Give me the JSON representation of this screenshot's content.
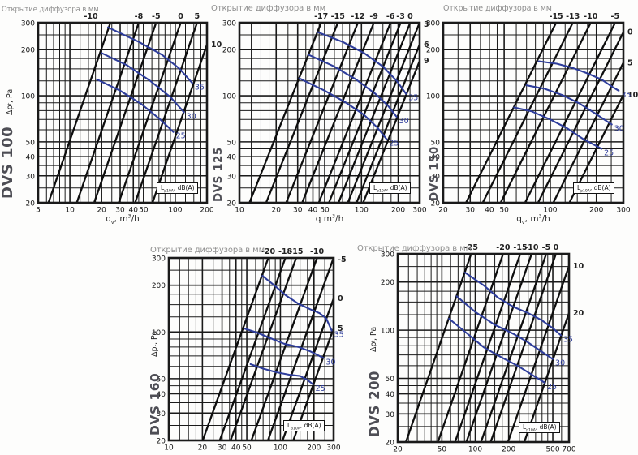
{
  "page": {
    "description": "Five log-log diffuser performance charts: pressure drop vs air flow for DVS diffusers, with diffuser-opening lines (mm) and constant noise-level curves dB(A)"
  },
  "shared": {
    "legend_parts": [
      [
        "L",
        ""
      ],
      [
        "p10A",
        "sub"
      ],
      [
        ", dB(A)",
        ""
      ]
    ],
    "colors": {
      "grid": "#1a1a1a",
      "opening_line": "#0e0e0e",
      "noise_curve": "#2e3d9b",
      "title_gray": "#8e8e8e",
      "model_gray": "#4e4e55",
      "tick_text": "#111111",
      "opening_label": "#222222"
    }
  },
  "chart_data": [
    {
      "type": "line",
      "model": "DVS 100",
      "title": "Открытие диффузора в мм",
      "x_scale": "log",
      "y_scale": "log",
      "x_range": [
        5,
        200
      ],
      "y_range": [
        20,
        300
      ],
      "x_ticks": [
        5,
        10,
        20,
        30,
        40,
        50,
        100,
        200
      ],
      "y_ticks": [
        20,
        30,
        40,
        50,
        100,
        200,
        300
      ],
      "x_label_parts": [
        [
          "q",
          ""
        ],
        [
          "v",
          "sub"
        ],
        [
          ", m",
          ""
        ],
        [
          "3",
          "sup"
        ],
        [
          "/h",
          ""
        ]
      ],
      "y_label_parts": [
        [
          "Δp",
          ""
        ],
        [
          "t",
          "sub"
        ],
        [
          ", Pa",
          ""
        ]
      ],
      "opening_lines_mm": [
        {
          "label": "-10",
          "flow_at_100Pa": 14,
          "label_side": "top",
          "label_dx": -24
        },
        {
          "label": "-8",
          "flow_at_100Pa": 26,
          "label_side": "top"
        },
        {
          "label": "-5",
          "flow_at_100Pa": 38,
          "label_side": "top"
        },
        {
          "label": "0",
          "flow_at_100Pa": 65,
          "label_side": "top"
        },
        {
          "label": "5",
          "flow_at_100Pa": 93,
          "label_side": "top"
        },
        {
          "label": "10",
          "flow_at_100Pa": 136,
          "label_side": "right"
        }
      ],
      "noise_curves_dBA": [
        {
          "label": "35",
          "points_q_dp": [
            [
              23,
              280
            ],
            [
              45,
              225
            ],
            [
              75,
              185
            ],
            [
              110,
              150
            ],
            [
              145,
              121
            ]
          ]
        },
        {
          "label": "30",
          "points_q_dp": [
            [
              20,
              190
            ],
            [
              35,
              158
            ],
            [
              58,
              125
            ],
            [
              90,
              98
            ],
            [
              121,
              78
            ]
          ]
        },
        {
          "label": "25",
          "points_q_dp": [
            [
              18,
              128
            ],
            [
              30,
              108
            ],
            [
              48,
              88
            ],
            [
              72,
              70
            ],
            [
              96,
              58
            ]
          ]
        }
      ]
    },
    {
      "type": "line",
      "model": "DVS 125",
      "title": "Открытие диффузора в мм",
      "x_scale": "log",
      "y_scale": "log",
      "x_range": [
        10,
        300
      ],
      "y_range": [
        20,
        300
      ],
      "x_ticks": [
        10,
        20,
        30,
        40,
        50,
        100,
        200,
        300
      ],
      "y_ticks": [
        20,
        30,
        40,
        50,
        100,
        200,
        300
      ],
      "x_label_parts": [
        [
          "q",
          ""
        ],
        [
          "  m",
          ""
        ],
        [
          "3",
          "sup"
        ],
        [
          "/h",
          ""
        ]
      ],
      "y_label_parts": [],
      "opening_lines_mm": [
        {
          "label": "-17",
          "flow_at_100Pa": 27,
          "label_side": "top"
        },
        {
          "label": "-15",
          "flow_at_100Pa": 37,
          "label_side": "top"
        },
        {
          "label": "-12",
          "flow_at_100Pa": 54,
          "label_side": "top"
        },
        {
          "label": "-9",
          "flow_at_100Pa": 73,
          "label_side": "top"
        },
        {
          "label": "-6",
          "flow_at_100Pa": 100,
          "label_side": "top"
        },
        {
          "label": "-3",
          "flow_at_100Pa": 121,
          "label_side": "top"
        },
        {
          "label": "0",
          "flow_at_100Pa": 145,
          "label_side": "top"
        },
        {
          "label": "3",
          "flow_at_100Pa": 173,
          "label_side": "right"
        },
        {
          "label": "6",
          "flow_at_100Pa": 204,
          "label_side": "right"
        },
        {
          "label": "9",
          "flow_at_100Pa": 231,
          "label_side": "right"
        }
      ],
      "noise_curves_dBA": [
        {
          "label": "35",
          "points_q_dp": [
            [
              44,
              260
            ],
            [
              70,
              225
            ],
            [
              105,
              190
            ],
            [
              150,
              155
            ],
            [
              195,
              125
            ],
            [
              232,
              103
            ]
          ]
        },
        {
          "label": "30",
          "points_q_dp": [
            [
              37,
              185
            ],
            [
              60,
              155
            ],
            [
              90,
              128
            ],
            [
              130,
              103
            ],
            [
              165,
              86
            ],
            [
              194,
              73
            ]
          ]
        },
        {
          "label": "25",
          "points_q_dp": [
            [
              31,
              130
            ],
            [
              50,
              108
            ],
            [
              75,
              90
            ],
            [
              105,
              75
            ],
            [
              135,
              62
            ],
            [
              161,
              52
            ]
          ]
        }
      ]
    },
    {
      "type": "line",
      "model": "DVS 150",
      "title": "Открытие диффузора в мм",
      "x_scale": "log",
      "y_scale": "log",
      "x_range": [
        20,
        300
      ],
      "y_range": [
        20,
        300
      ],
      "x_ticks": [
        20,
        30,
        40,
        50,
        100,
        200,
        300
      ],
      "y_ticks": [
        20,
        30,
        40,
        50,
        100,
        200,
        300
      ],
      "x_label_parts": [
        [
          "q",
          ""
        ],
        [
          "v",
          "sub"
        ],
        [
          ", m",
          ""
        ],
        [
          "3",
          "sup"
        ],
        [
          "/h",
          ""
        ]
      ],
      "y_label_parts": [],
      "opening_lines_mm": [
        {
          "label": "-15",
          "flow_at_100Pa": 63,
          "label_side": "top"
        },
        {
          "label": "-13",
          "flow_at_100Pa": 81,
          "label_side": "top"
        },
        {
          "label": "-10",
          "flow_at_100Pa": 106,
          "label_side": "top"
        },
        {
          "label": "-5",
          "flow_at_100Pa": 153,
          "label_side": "top"
        },
        {
          "label": "0",
          "flow_at_100Pa": 186,
          "label_side": "right"
        },
        {
          "label": "5",
          "flow_at_100Pa": 234,
          "label_side": "right"
        },
        {
          "label": "10",
          "flow_at_100Pa": 298,
          "label_side": "right"
        }
      ],
      "noise_curves_dBA": [
        {
          "label": "35",
          "points_q_dp": [
            [
              84,
              168
            ],
            [
              110,
              162
            ],
            [
              140,
              152
            ],
            [
              175,
              140
            ],
            [
              215,
              128
            ],
            [
              255,
              114
            ],
            [
              280,
              108
            ]
          ]
        },
        {
          "label": "30",
          "points_q_dp": [
            [
              70,
              117
            ],
            [
              92,
              111
            ],
            [
              120,
              101
            ],
            [
              155,
              89
            ],
            [
              195,
              77
            ],
            [
              235,
              68
            ],
            [
              252,
              65
            ]
          ]
        },
        {
          "label": "25",
          "points_q_dp": [
            [
              58,
              84
            ],
            [
              76,
              79
            ],
            [
              100,
              70
            ],
            [
              130,
              61
            ],
            [
              165,
              52
            ],
            [
              200,
              47
            ],
            [
              216,
              45
            ]
          ]
        }
      ]
    },
    {
      "type": "line",
      "model": "DVS 160",
      "title": "Открытие диффузора в мм",
      "x_scale": "log",
      "y_scale": "log",
      "x_range": [
        10,
        300
      ],
      "y_range": [
        20,
        300
      ],
      "x_ticks": [
        10,
        20,
        30,
        40,
        50,
        100,
        200,
        300
      ],
      "y_ticks": [
        20,
        30,
        40,
        50,
        100,
        200,
        300
      ],
      "x_label_parts": [],
      "y_label_parts": [
        [
          "Δp",
          ""
        ],
        [
          "t",
          "sub"
        ],
        [
          ", Pa",
          ""
        ]
      ],
      "opening_lines_mm": [
        {
          "label": "-20",
          "flow_at_100Pa": 45,
          "label_side": "top"
        },
        {
          "label": "-18",
          "flow_at_100Pa": 64,
          "label_side": "top"
        },
        {
          "label": "-15",
          "flow_at_100Pa": 80,
          "label_side": "top"
        },
        {
          "label": "-10",
          "flow_at_100Pa": 123,
          "label_side": "top"
        },
        {
          "label": "-5",
          "flow_at_100Pa": 173,
          "label_side": "right"
        },
        {
          "label": "0",
          "flow_at_100Pa": 234,
          "label_side": "right"
        },
        {
          "label": "5",
          "flow_at_100Pa": 292,
          "label_side": "right"
        }
      ],
      "noise_curves_dBA": [
        {
          "label": "35",
          "points_q_dp": [
            [
              69,
              230
            ],
            [
              88,
              200
            ],
            [
              112,
              172
            ],
            [
              145,
              152
            ],
            [
              185,
              140
            ],
            [
              225,
              132
            ],
            [
              258,
              122
            ],
            [
              288,
              102
            ]
          ]
        },
        {
          "label": "30",
          "points_q_dp": [
            [
              48,
              105
            ],
            [
              62,
              99
            ],
            [
              82,
              91
            ],
            [
              108,
              84
            ],
            [
              145,
              80
            ],
            [
              185,
              75
            ],
            [
              215,
              71
            ],
            [
              243,
              68
            ]
          ]
        },
        {
          "label": "25",
          "points_q_dp": [
            [
              54,
              62
            ],
            [
              70,
              58
            ],
            [
              92,
              55
            ],
            [
              120,
              53
            ],
            [
              150,
              52
            ],
            [
              175,
              49
            ],
            [
              196,
              46
            ]
          ]
        }
      ]
    },
    {
      "type": "line",
      "model": "DVS 200",
      "title": "Открытие диффузора в мм",
      "x_scale": "log",
      "y_scale": "log",
      "x_range": [
        20,
        700
      ],
      "y_range": [
        20,
        300
      ],
      "x_ticks": [
        20,
        50,
        100,
        200,
        500,
        700
      ],
      "y_ticks": [
        20,
        30,
        40,
        50,
        100,
        200,
        300
      ],
      "x_label_parts": [],
      "y_label_parts": [
        [
          "Δp",
          ""
        ],
        [
          "t",
          "sub"
        ],
        [
          ", Pa",
          ""
        ]
      ],
      "opening_lines_mm": [
        {
          "label": "-25",
          "flow_at_100Pa": 53,
          "label_side": "top"
        },
        {
          "label": "-20",
          "flow_at_100Pa": 103,
          "label_side": "top"
        },
        {
          "label": "-15",
          "flow_at_100Pa": 147,
          "label_side": "top"
        },
        {
          "label": "-10",
          "flow_at_100Pa": 186,
          "label_side": "top"
        },
        {
          "label": "-5",
          "flow_at_100Pa": 252,
          "label_side": "top"
        },
        {
          "label": "0",
          "flow_at_100Pa": 308,
          "label_side": "top"
        },
        {
          "label": "10",
          "flow_at_100Pa": 441,
          "label_side": "right"
        },
        {
          "label": "20",
          "flow_at_100Pa": 619,
          "label_side": "right"
        }
      ],
      "noise_curves_dBA": [
        {
          "label": "35",
          "points_q_dp": [
            [
              81,
              229
            ],
            [
              120,
              190
            ],
            [
              160,
              160
            ],
            [
              220,
              140
            ],
            [
              300,
              128
            ],
            [
              400,
              115
            ],
            [
              500,
              103
            ],
            [
              590,
              93
            ]
          ]
        },
        {
          "label": "30",
          "points_q_dp": [
            [
              68,
              163
            ],
            [
              100,
              130
            ],
            [
              150,
              108
            ],
            [
              220,
              95
            ],
            [
              290,
              85
            ],
            [
              380,
              75
            ],
            [
              500,
              66
            ]
          ]
        },
        {
          "label": "25",
          "points_q_dp": [
            [
              58,
              118
            ],
            [
              85,
              95
            ],
            [
              120,
              78
            ],
            [
              170,
              68
            ],
            [
              240,
              60
            ],
            [
              320,
              53
            ],
            [
              422,
              47
            ]
          ]
        }
      ]
    }
  ]
}
